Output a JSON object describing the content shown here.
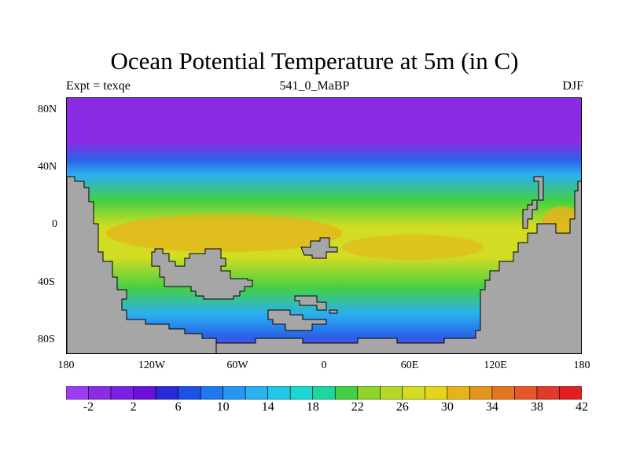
{
  "title": "Ocean Potential Temperature at 5m (in C)",
  "subtitle_left": "Expt = texqe",
  "subtitle_center": "541_0_MaBP",
  "subtitle_right": "DJF",
  "y_tick_labels": [
    "80N",
    "40N",
    "0",
    "40S",
    "80S"
  ],
  "x_tick_labels": [
    "180",
    "120W",
    "60W",
    "0",
    "60E",
    "120E",
    "180"
  ],
  "colorbar": {
    "labels": [
      "-2",
      "2",
      "6",
      "10",
      "14",
      "18",
      "22",
      "26",
      "30",
      "34",
      "38",
      "42"
    ],
    "colors": [
      "#9b3cf2",
      "#8a2be6",
      "#7b1fe0",
      "#6a10d8",
      "#2a2ad8",
      "#1a52e6",
      "#1e78ee",
      "#2596f2",
      "#2bb0f0",
      "#22c6e8",
      "#18d8d0",
      "#1ed6a0",
      "#44d044",
      "#8ed42a",
      "#b4d826",
      "#d2dc22",
      "#e6d418",
      "#e6b41a",
      "#e4961c",
      "#e47622",
      "#e4582a",
      "#e23a2a",
      "#e02020"
    ]
  },
  "land_color": "#a6a6a6",
  "ocean_palette": {
    "polar": "#8a2be6",
    "cold": "#2a62e8",
    "cool": "#2bb0f0",
    "mid": "#44d044",
    "warm": "#d2dc22",
    "hot": "#e4b41c"
  }
}
